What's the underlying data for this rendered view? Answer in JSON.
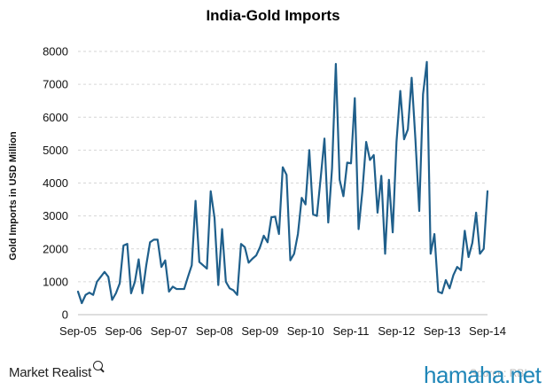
{
  "chart_data": {
    "type": "line",
    "title": "India-Gold Imports",
    "xlabel": "",
    "ylabel": "Gold Imports in USD Million",
    "ylim": [
      0,
      8000
    ],
    "y_ticks": [
      0,
      1000,
      2000,
      3000,
      4000,
      5000,
      6000,
      7000,
      8000
    ],
    "x_tick_labels": [
      "Sep-05",
      "Sep-06",
      "Sep-07",
      "Sep-08",
      "Sep-09",
      "Sep-10",
      "Sep-11",
      "Sep-12",
      "Sep-13",
      "Sep-14"
    ],
    "grid": "horizontal dashed",
    "line_color": "#1f5f8b",
    "series": [
      {
        "values": [
          700,
          350,
          600,
          670,
          600,
          1000,
          1150,
          1300,
          1150,
          450,
          650,
          950,
          2100,
          2150,
          650,
          1000,
          1680,
          650,
          1500,
          2200,
          2280,
          2280,
          1450,
          1650,
          700,
          850,
          780,
          780,
          780,
          1150,
          1500,
          3460,
          1600,
          1500,
          1400,
          3750,
          2950,
          900,
          2600,
          1000,
          800,
          740,
          600,
          2150,
          2050,
          1580,
          1700,
          1800,
          2050,
          2400,
          2200,
          2960,
          2980,
          2450,
          4480,
          4250,
          1650,
          1850,
          2450,
          3550,
          3350,
          5000,
          3050,
          3000,
          4150,
          5350,
          2800,
          4450,
          7620,
          4100,
          3600,
          4620,
          4600,
          6580,
          2600,
          3750,
          5250,
          4700,
          4850,
          3100,
          4220,
          1850,
          4100,
          2500,
          5250,
          6800,
          5330,
          5630,
          7200,
          5300,
          3150,
          6700,
          7680,
          1850,
          2450,
          700,
          650,
          1050,
          800,
          1200,
          1450,
          1350,
          2550,
          1750,
          2180,
          3100,
          1850,
          2000,
          3750
        ]
      }
    ]
  },
  "footer": {
    "brand": "Market Realist",
    "source": "Source: RBI",
    "watermark": "hamaha.net"
  }
}
